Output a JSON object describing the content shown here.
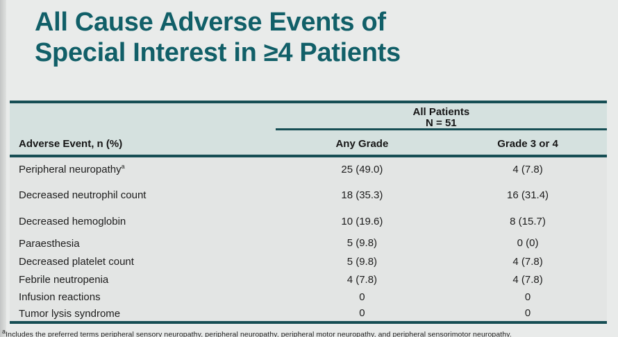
{
  "slide": {
    "title_line1": "All Cause Adverse Events of",
    "title_line2": "Special Interest in ≥4 Patients"
  },
  "table": {
    "group_header": {
      "line1": "All Patients",
      "line2": "N = 51"
    },
    "columns": [
      "Adverse Event, n (%)",
      "Any Grade",
      "Grade 3 or 4"
    ],
    "rows": [
      {
        "event": "Peripheral neuropathy",
        "sup": "a",
        "any_grade": "25 (49.0)",
        "grade_3_4": "4 (7.8)"
      },
      {
        "event": "Decreased neutrophil count",
        "sup": "",
        "any_grade": "18 (35.3)",
        "grade_3_4": "16 (31.4)"
      },
      {
        "event": "Decreased hemoglobin",
        "sup": "",
        "any_grade": "10 (19.6)",
        "grade_3_4": "8 (15.7)"
      },
      {
        "event": "Paraesthesia",
        "sup": "",
        "any_grade": "5 (9.8)",
        "grade_3_4": "0 (0)"
      },
      {
        "event": "Decreased platelet count",
        "sup": "",
        "any_grade": "5 (9.8)",
        "grade_3_4": "4 (7.8)"
      },
      {
        "event": "Febrile neutropenia",
        "sup": "",
        "any_grade": "4 (7.8)",
        "grade_3_4": "4 (7.8)"
      },
      {
        "event": "Infusion reactions",
        "sup": "",
        "any_grade": "0",
        "grade_3_4": "0"
      },
      {
        "event": "Tumor lysis syndrome",
        "sup": "",
        "any_grade": "0",
        "grade_3_4": "0"
      }
    ]
  },
  "footnote": {
    "sup": "a",
    "text": "Includes the preferred terms peripheral sensory neuropathy, peripheral neuropathy, peripheral motor neuropathy, and peripheral sensorimotor neuropathy."
  },
  "colors": {
    "title_teal": "#115f68",
    "line_teal": "#164e54",
    "header_bg": "#d5e1df",
    "slide_bg": "#e9ebea"
  }
}
